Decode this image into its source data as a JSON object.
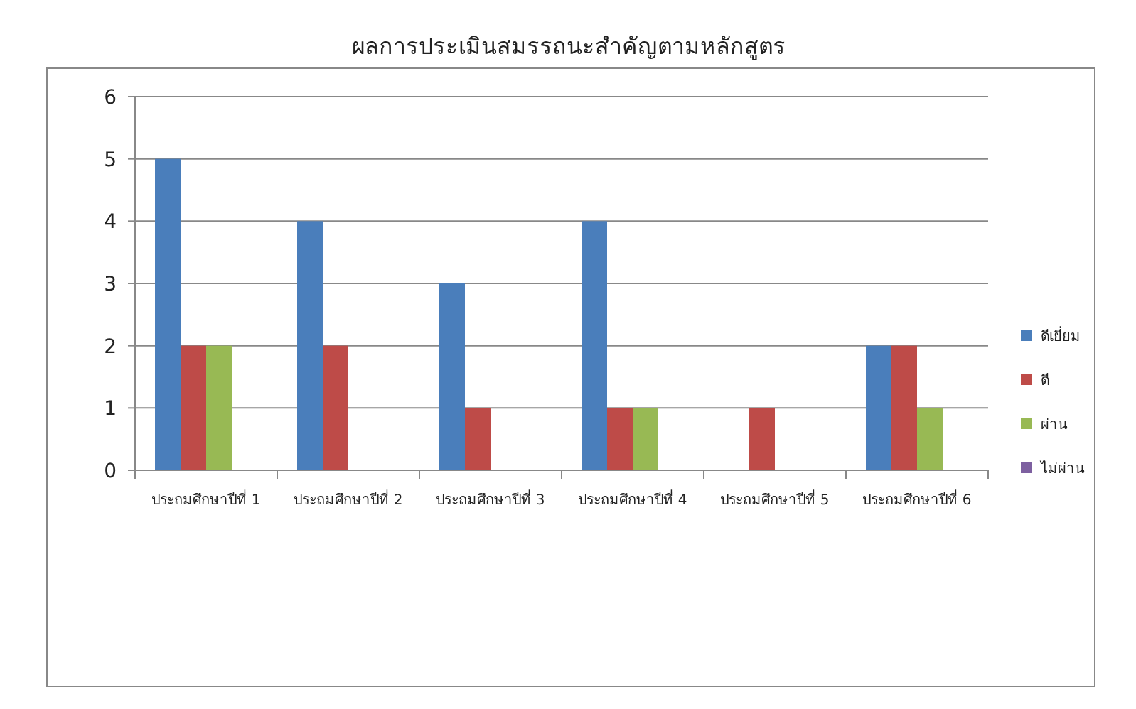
{
  "chart_data": {
    "type": "bar",
    "title": "ผลการประเมินสมรรถนะสำคัญตามหลักสูตร",
    "categories": [
      "ประถมศึกษาปีที่ 1",
      "ประถมศึกษาปีที่ 2",
      "ประถมศึกษาปีที่ 3",
      "ประถมศึกษาปีที่ 4",
      "ประถมศึกษาปีที่ 5",
      "ประถมศึกษาปีที่ 6"
    ],
    "series": [
      {
        "name": "ดีเยี่ยม",
        "color": "#4a7ebb",
        "values": [
          5,
          4,
          3,
          4,
          0,
          2
        ]
      },
      {
        "name": "ดี",
        "color": "#be4b48",
        "values": [
          2,
          2,
          1,
          1,
          1,
          2
        ]
      },
      {
        "name": "ผ่าน",
        "color": "#98b954",
        "values": [
          2,
          0,
          0,
          1,
          0,
          1
        ]
      },
      {
        "name": "ไม่ผ่าน",
        "color": "#7d60a0",
        "values": [
          0,
          0,
          0,
          0,
          0,
          0
        ]
      }
    ],
    "ylim": [
      0,
      6
    ],
    "yticks": [
      0,
      1,
      2,
      3,
      4,
      5,
      6
    ],
    "grid": "y",
    "legend": "right"
  }
}
